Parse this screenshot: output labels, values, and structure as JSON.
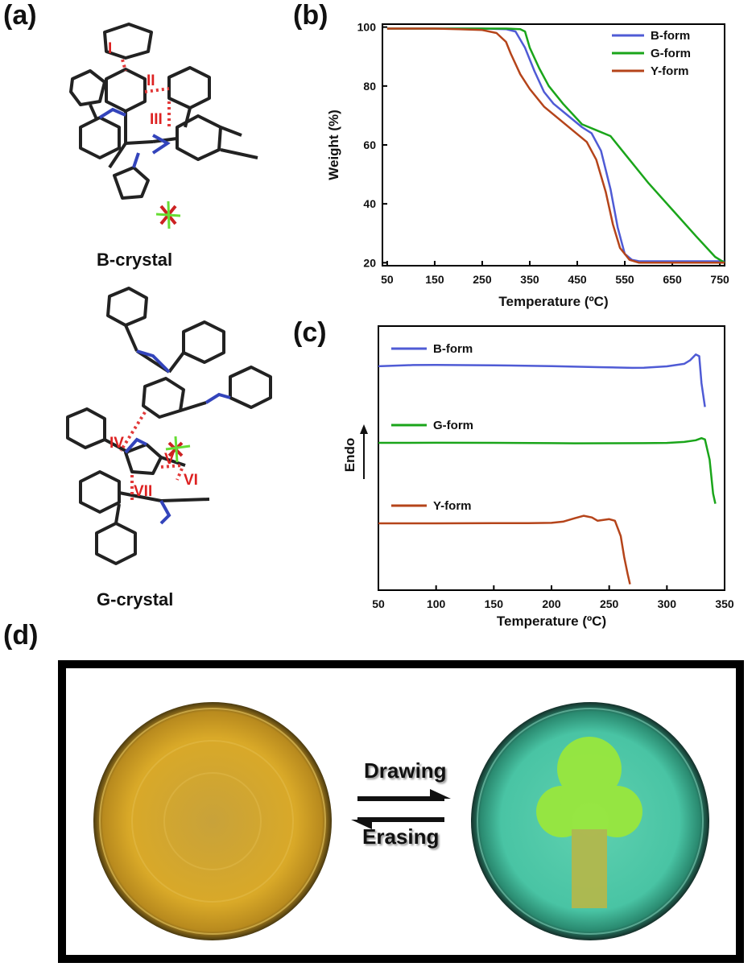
{
  "panels": {
    "a_label": "(a)",
    "b_label": "(b)",
    "c_label": "(c)",
    "d_label": "(d)"
  },
  "crystals": {
    "b_name": "B-crystal",
    "g_name": "G-crystal",
    "b_interactions": [
      "I",
      "II",
      "III"
    ],
    "g_interactions": [
      "IV",
      "V",
      "VI",
      "VII"
    ]
  },
  "photo": {
    "forward_label": "Drawing",
    "reverse_label": "Erasing"
  },
  "colors": {
    "B-form": "#4f5bd5",
    "G-form": "#1aa51a",
    "Y-form": "#b5441a"
  },
  "chart_data": [
    {
      "type": "line",
      "xlabel": "Temperature (ºC)",
      "ylabel": "Weight (%)",
      "xlim": [
        40,
        760
      ],
      "ylim": [
        19,
        101
      ],
      "xticks": [
        50,
        150,
        250,
        350,
        450,
        550,
        650,
        750
      ],
      "yticks": [
        20,
        40,
        60,
        80,
        100
      ],
      "legend_position": "top-right",
      "series": [
        {
          "name": "B-form",
          "x": [
            50,
            150,
            250,
            300,
            320,
            340,
            360,
            380,
            400,
            430,
            460,
            480,
            500,
            520,
            535,
            550,
            565,
            580,
            600,
            650,
            700,
            760
          ],
          "y": [
            99.5,
            99.5,
            99.5,
            99.3,
            98.5,
            93,
            85,
            78,
            74,
            70,
            66,
            64,
            58,
            45,
            32,
            23,
            21,
            20.5,
            20.5,
            20.5,
            20.5,
            20.5
          ]
        },
        {
          "name": "G-form",
          "x": [
            50,
            150,
            250,
            300,
            330,
            340,
            350,
            370,
            390,
            420,
            460,
            490,
            520,
            540,
            560,
            600,
            650,
            700,
            740,
            760
          ],
          "y": [
            99.5,
            99.5,
            99.5,
            99.5,
            99.3,
            98.5,
            93,
            86,
            80,
            74,
            67,
            65,
            63,
            59,
            55,
            47,
            38,
            29,
            22,
            20
          ]
        },
        {
          "name": "Y-form",
          "x": [
            50,
            150,
            200,
            250,
            280,
            300,
            310,
            330,
            350,
            380,
            410,
            440,
            470,
            490,
            510,
            525,
            540,
            560,
            580,
            600,
            760
          ],
          "y": [
            99.5,
            99.5,
            99.3,
            99,
            98,
            95,
            91,
            84,
            79,
            73,
            69,
            65,
            61,
            55,
            44,
            33,
            25,
            21,
            20,
            20,
            20
          ]
        }
      ]
    },
    {
      "type": "line",
      "xlabel": "Temperature (ºC)",
      "ylabel": "Endo",
      "xlim": [
        50,
        350
      ],
      "xticks": [
        50,
        100,
        150,
        200,
        250,
        300,
        350
      ],
      "legend_position": "inline",
      "series": [
        {
          "name": "B-form",
          "x": [
            50,
            80,
            100,
            150,
            200,
            240,
            270,
            280,
            300,
            315,
            320,
            325,
            328,
            330,
            333
          ],
          "y": [
            0.1,
            1.5,
            1.6,
            1.2,
            0.3,
            -1,
            -1.8,
            -1.6,
            0,
            3,
            7,
            14,
            12,
            -20,
            -48
          ]
        },
        {
          "name": "G-form",
          "x": [
            50,
            100,
            150,
            200,
            220,
            250,
            280,
            300,
            315,
            325,
            330,
            333,
            337,
            340,
            342
          ],
          "y": [
            0,
            0.1,
            0,
            -0.4,
            -0.6,
            -0.5,
            -0.4,
            -0.1,
            1,
            3,
            5.5,
            4,
            -20,
            -60,
            -72
          ]
        },
        {
          "name": "Y-form",
          "x": [
            50,
            100,
            150,
            180,
            200,
            210,
            220,
            228,
            235,
            240,
            245,
            250,
            255,
            260,
            263,
            266,
            268
          ],
          "y": [
            0,
            0,
            0.2,
            0.3,
            0.6,
            2,
            6,
            9,
            7,
            3,
            4,
            5,
            3,
            -15,
            -40,
            -60,
            -72
          ]
        }
      ]
    }
  ]
}
